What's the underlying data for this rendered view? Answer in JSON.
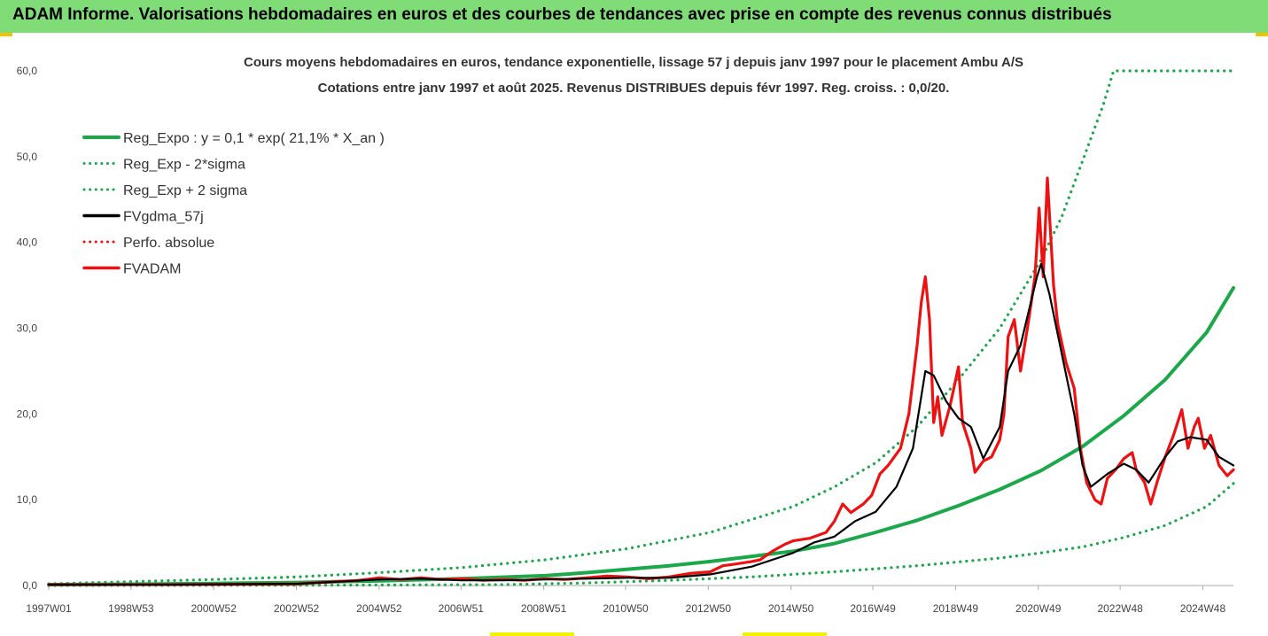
{
  "banner": {
    "title": "ADAM Informe. Valorisations hebdomadaires en euros et des courbes de tendances avec prise en compte des revenus connus distribués"
  },
  "colors": {
    "banner_bg": "#7fdc77",
    "trend": "#1aa84a",
    "smoothed": "#000000",
    "price": "#ee1111"
  },
  "chart_data": {
    "type": "line",
    "title": "Cours moyens hebdomadaires en euros, tendance exponentielle, lissage 57 j depuis janv 1997 pour le placement Ambu A/S",
    "subtitle": "Cotations entre janv 1997 et août 2025. Revenus DISTRIBUES depuis févr 1997. Reg. croiss. : 0,0/20.",
    "xlabel": "",
    "ylabel": "",
    "ylim": [
      0,
      60
    ],
    "yticks": [
      "0,0",
      "10,0",
      "20,0",
      "30,0",
      "40,0",
      "50,0",
      "60,0"
    ],
    "xrange": [
      1997.0,
      2025.65
    ],
    "xticks": [
      {
        "x": 1997.0,
        "label": "1997W01"
      },
      {
        "x": 1998.99,
        "label": "1998W53"
      },
      {
        "x": 2000.99,
        "label": "2000W52"
      },
      {
        "x": 2002.99,
        "label": "2002W52"
      },
      {
        "x": 2004.99,
        "label": "2004W52"
      },
      {
        "x": 2006.97,
        "label": "2006W51"
      },
      {
        "x": 2008.97,
        "label": "2008W51"
      },
      {
        "x": 2010.95,
        "label": "2010W50"
      },
      {
        "x": 2012.95,
        "label": "2012W50"
      },
      {
        "x": 2014.95,
        "label": "2014W50"
      },
      {
        "x": 2016.93,
        "label": "2016W49"
      },
      {
        "x": 2018.93,
        "label": "2018W49"
      },
      {
        "x": 2020.93,
        "label": "2020W49"
      },
      {
        "x": 2022.91,
        "label": "2022W48"
      },
      {
        "x": 2024.91,
        "label": "2024W48"
      }
    ],
    "grid": false,
    "legend_position": "top-left",
    "series": [
      {
        "name": "Reg_Expo : y = 0,1 * exp( 21,1% *  X_an )",
        "color": "#1aa84a",
        "style": "solid",
        "points": [
          [
            1997.0,
            0.1
          ],
          [
            1999.0,
            0.15
          ],
          [
            2001.0,
            0.24
          ],
          [
            2003.0,
            0.35
          ],
          [
            2005.0,
            0.55
          ],
          [
            2007.0,
            0.8
          ],
          [
            2009.0,
            1.15
          ],
          [
            2010.0,
            1.5
          ],
          [
            2011.0,
            1.9
          ],
          [
            2012.0,
            2.3
          ],
          [
            2013.0,
            2.8
          ],
          [
            2014.0,
            3.4
          ],
          [
            2015.0,
            4.0
          ],
          [
            2016.0,
            4.9
          ],
          [
            2017.0,
            6.2
          ],
          [
            2018.0,
            7.6
          ],
          [
            2019.0,
            9.3
          ],
          [
            2020.0,
            11.2
          ],
          [
            2021.0,
            13.4
          ],
          [
            2022.0,
            16.2
          ],
          [
            2023.0,
            19.8
          ],
          [
            2024.0,
            24.0
          ],
          [
            2025.0,
            29.5
          ],
          [
            2025.65,
            34.7
          ]
        ]
      },
      {
        "name": "Reg_Exp - 2*sigma",
        "color": "#1aa84a",
        "style": "dotted",
        "points": [
          [
            1997.0,
            0.0
          ],
          [
            2003.0,
            0.03
          ],
          [
            2008.0,
            0.1
          ],
          [
            2010.0,
            0.3
          ],
          [
            2012.0,
            0.6
          ],
          [
            2014.0,
            1.0
          ],
          [
            2016.0,
            1.6
          ],
          [
            2018.0,
            2.3
          ],
          [
            2020.0,
            3.2
          ],
          [
            2021.0,
            3.8
          ],
          [
            2022.0,
            4.5
          ],
          [
            2023.0,
            5.6
          ],
          [
            2024.0,
            7.0
          ],
          [
            2025.0,
            9.2
          ],
          [
            2025.65,
            11.9
          ]
        ]
      },
      {
        "name": "Reg_Exp + 2 sigma",
        "color": "#1aa84a",
        "style": "dotted",
        "points": [
          [
            1997.0,
            0.2
          ],
          [
            1999.0,
            0.45
          ],
          [
            2001.0,
            0.7
          ],
          [
            2003.0,
            1.0
          ],
          [
            2005.0,
            1.5
          ],
          [
            2007.0,
            2.1
          ],
          [
            2009.0,
            3.0
          ],
          [
            2011.0,
            4.3
          ],
          [
            2013.0,
            6.2
          ],
          [
            2015.0,
            9.2
          ],
          [
            2016.0,
            11.5
          ],
          [
            2017.0,
            14.3
          ],
          [
            2018.0,
            18.5
          ],
          [
            2019.0,
            24.0
          ],
          [
            2020.0,
            30.0
          ],
          [
            2021.0,
            38.0
          ],
          [
            2021.5,
            43.0
          ],
          [
            2022.0,
            49.5
          ],
          [
            2022.5,
            56.0
          ],
          [
            2022.75,
            60.0
          ],
          [
            2025.65,
            60.0
          ]
        ]
      },
      {
        "name": "FVgdma_57j",
        "color": "#000000",
        "style": "solid",
        "points": [
          [
            1997.0,
            0.1
          ],
          [
            2000.0,
            0.1
          ],
          [
            2003.0,
            0.2
          ],
          [
            2005.0,
            0.7
          ],
          [
            2006.0,
            0.8
          ],
          [
            2007.0,
            0.6
          ],
          [
            2008.0,
            0.6
          ],
          [
            2009.0,
            0.7
          ],
          [
            2010.0,
            0.8
          ],
          [
            2011.0,
            0.9
          ],
          [
            2012.0,
            0.9
          ],
          [
            2013.0,
            1.3
          ],
          [
            2014.0,
            2.2
          ],
          [
            2015.0,
            3.8
          ],
          [
            2015.5,
            5.0
          ],
          [
            2016.0,
            5.7
          ],
          [
            2016.5,
            7.5
          ],
          [
            2017.0,
            8.6
          ],
          [
            2017.5,
            11.5
          ],
          [
            2017.9,
            16.0
          ],
          [
            2018.2,
            25.0
          ],
          [
            2018.4,
            24.5
          ],
          [
            2018.7,
            21.5
          ],
          [
            2019.0,
            19.5
          ],
          [
            2019.3,
            18.5
          ],
          [
            2019.6,
            14.8
          ],
          [
            2020.0,
            18.5
          ],
          [
            2020.2,
            25.0
          ],
          [
            2020.5,
            28.0
          ],
          [
            2020.9,
            36.0
          ],
          [
            2021.0,
            37.5
          ],
          [
            2021.2,
            34.0
          ],
          [
            2021.5,
            27.0
          ],
          [
            2021.8,
            20.0
          ],
          [
            2022.0,
            14.0
          ],
          [
            2022.2,
            11.5
          ],
          [
            2022.6,
            13.0
          ],
          [
            2023.0,
            14.2
          ],
          [
            2023.3,
            13.5
          ],
          [
            2023.6,
            12.0
          ],
          [
            2024.0,
            15.0
          ],
          [
            2024.3,
            16.8
          ],
          [
            2024.6,
            17.3
          ],
          [
            2025.0,
            17.0
          ],
          [
            2025.3,
            15.0
          ],
          [
            2025.65,
            14.0
          ]
        ]
      },
      {
        "name": "Perfo. absolue",
        "color": "#ee1111",
        "style": "dotted",
        "points": []
      },
      {
        "name": "FVADAM",
        "color": "#ee1111",
        "style": "solid",
        "points": [
          [
            1997.0,
            0.1
          ],
          [
            2000.0,
            0.1
          ],
          [
            2003.0,
            0.2
          ],
          [
            2004.5,
            0.6
          ],
          [
            2005.0,
            0.9
          ],
          [
            2005.5,
            0.7
          ],
          [
            2006.0,
            0.9
          ],
          [
            2006.5,
            0.7
          ],
          [
            2007.0,
            0.8
          ],
          [
            2007.5,
            0.6
          ],
          [
            2008.0,
            0.7
          ],
          [
            2008.5,
            0.6
          ],
          [
            2009.0,
            0.8
          ],
          [
            2009.5,
            0.7
          ],
          [
            2010.0,
            0.9
          ],
          [
            2010.5,
            1.1
          ],
          [
            2011.0,
            1.0
          ],
          [
            2011.5,
            0.8
          ],
          [
            2012.0,
            1.0
          ],
          [
            2012.5,
            1.4
          ],
          [
            2013.0,
            1.6
          ],
          [
            2013.3,
            2.3
          ],
          [
            2013.6,
            2.5
          ],
          [
            2014.0,
            2.8
          ],
          [
            2014.2,
            3.0
          ],
          [
            2014.5,
            4.0
          ],
          [
            2014.8,
            4.8
          ],
          [
            2015.0,
            5.2
          ],
          [
            2015.4,
            5.5
          ],
          [
            2015.8,
            6.2
          ],
          [
            2016.0,
            7.5
          ],
          [
            2016.2,
            9.5
          ],
          [
            2016.4,
            8.5
          ],
          [
            2016.7,
            9.5
          ],
          [
            2016.9,
            10.5
          ],
          [
            2017.1,
            13.0
          ],
          [
            2017.3,
            14.0
          ],
          [
            2017.6,
            16.0
          ],
          [
            2017.8,
            20.0
          ],
          [
            2018.0,
            28.0
          ],
          [
            2018.1,
            33.0
          ],
          [
            2018.2,
            36.0
          ],
          [
            2018.3,
            31.0
          ],
          [
            2018.4,
            19.0
          ],
          [
            2018.5,
            22.0
          ],
          [
            2018.6,
            17.5
          ],
          [
            2018.8,
            21.0
          ],
          [
            2019.0,
            25.5
          ],
          [
            2019.1,
            19.0
          ],
          [
            2019.3,
            16.0
          ],
          [
            2019.4,
            13.2
          ],
          [
            2019.6,
            14.5
          ],
          [
            2019.8,
            15.0
          ],
          [
            2020.0,
            17.0
          ],
          [
            2020.1,
            20.0
          ],
          [
            2020.2,
            29.0
          ],
          [
            2020.35,
            31.0
          ],
          [
            2020.5,
            25.0
          ],
          [
            2020.7,
            31.0
          ],
          [
            2020.85,
            36.0
          ],
          [
            2020.95,
            44.0
          ],
          [
            2021.05,
            36.0
          ],
          [
            2021.15,
            47.5
          ],
          [
            2021.3,
            35.0
          ],
          [
            2021.4,
            30.5
          ],
          [
            2021.6,
            26.0
          ],
          [
            2021.8,
            23.0
          ],
          [
            2021.95,
            16.0
          ],
          [
            2022.1,
            12.0
          ],
          [
            2022.3,
            10.0
          ],
          [
            2022.45,
            9.5
          ],
          [
            2022.6,
            12.5
          ],
          [
            2022.8,
            13.5
          ],
          [
            2023.0,
            14.8
          ],
          [
            2023.2,
            15.5
          ],
          [
            2023.3,
            13.5
          ],
          [
            2023.5,
            12.0
          ],
          [
            2023.65,
            9.5
          ],
          [
            2023.8,
            12.0
          ],
          [
            2024.0,
            15.0
          ],
          [
            2024.2,
            17.5
          ],
          [
            2024.4,
            20.5
          ],
          [
            2024.55,
            16.0
          ],
          [
            2024.7,
            18.5
          ],
          [
            2024.8,
            19.5
          ],
          [
            2024.95,
            16.0
          ],
          [
            2025.1,
            17.5
          ],
          [
            2025.3,
            14.0
          ],
          [
            2025.5,
            12.8
          ],
          [
            2025.65,
            13.5
          ]
        ]
      }
    ]
  }
}
